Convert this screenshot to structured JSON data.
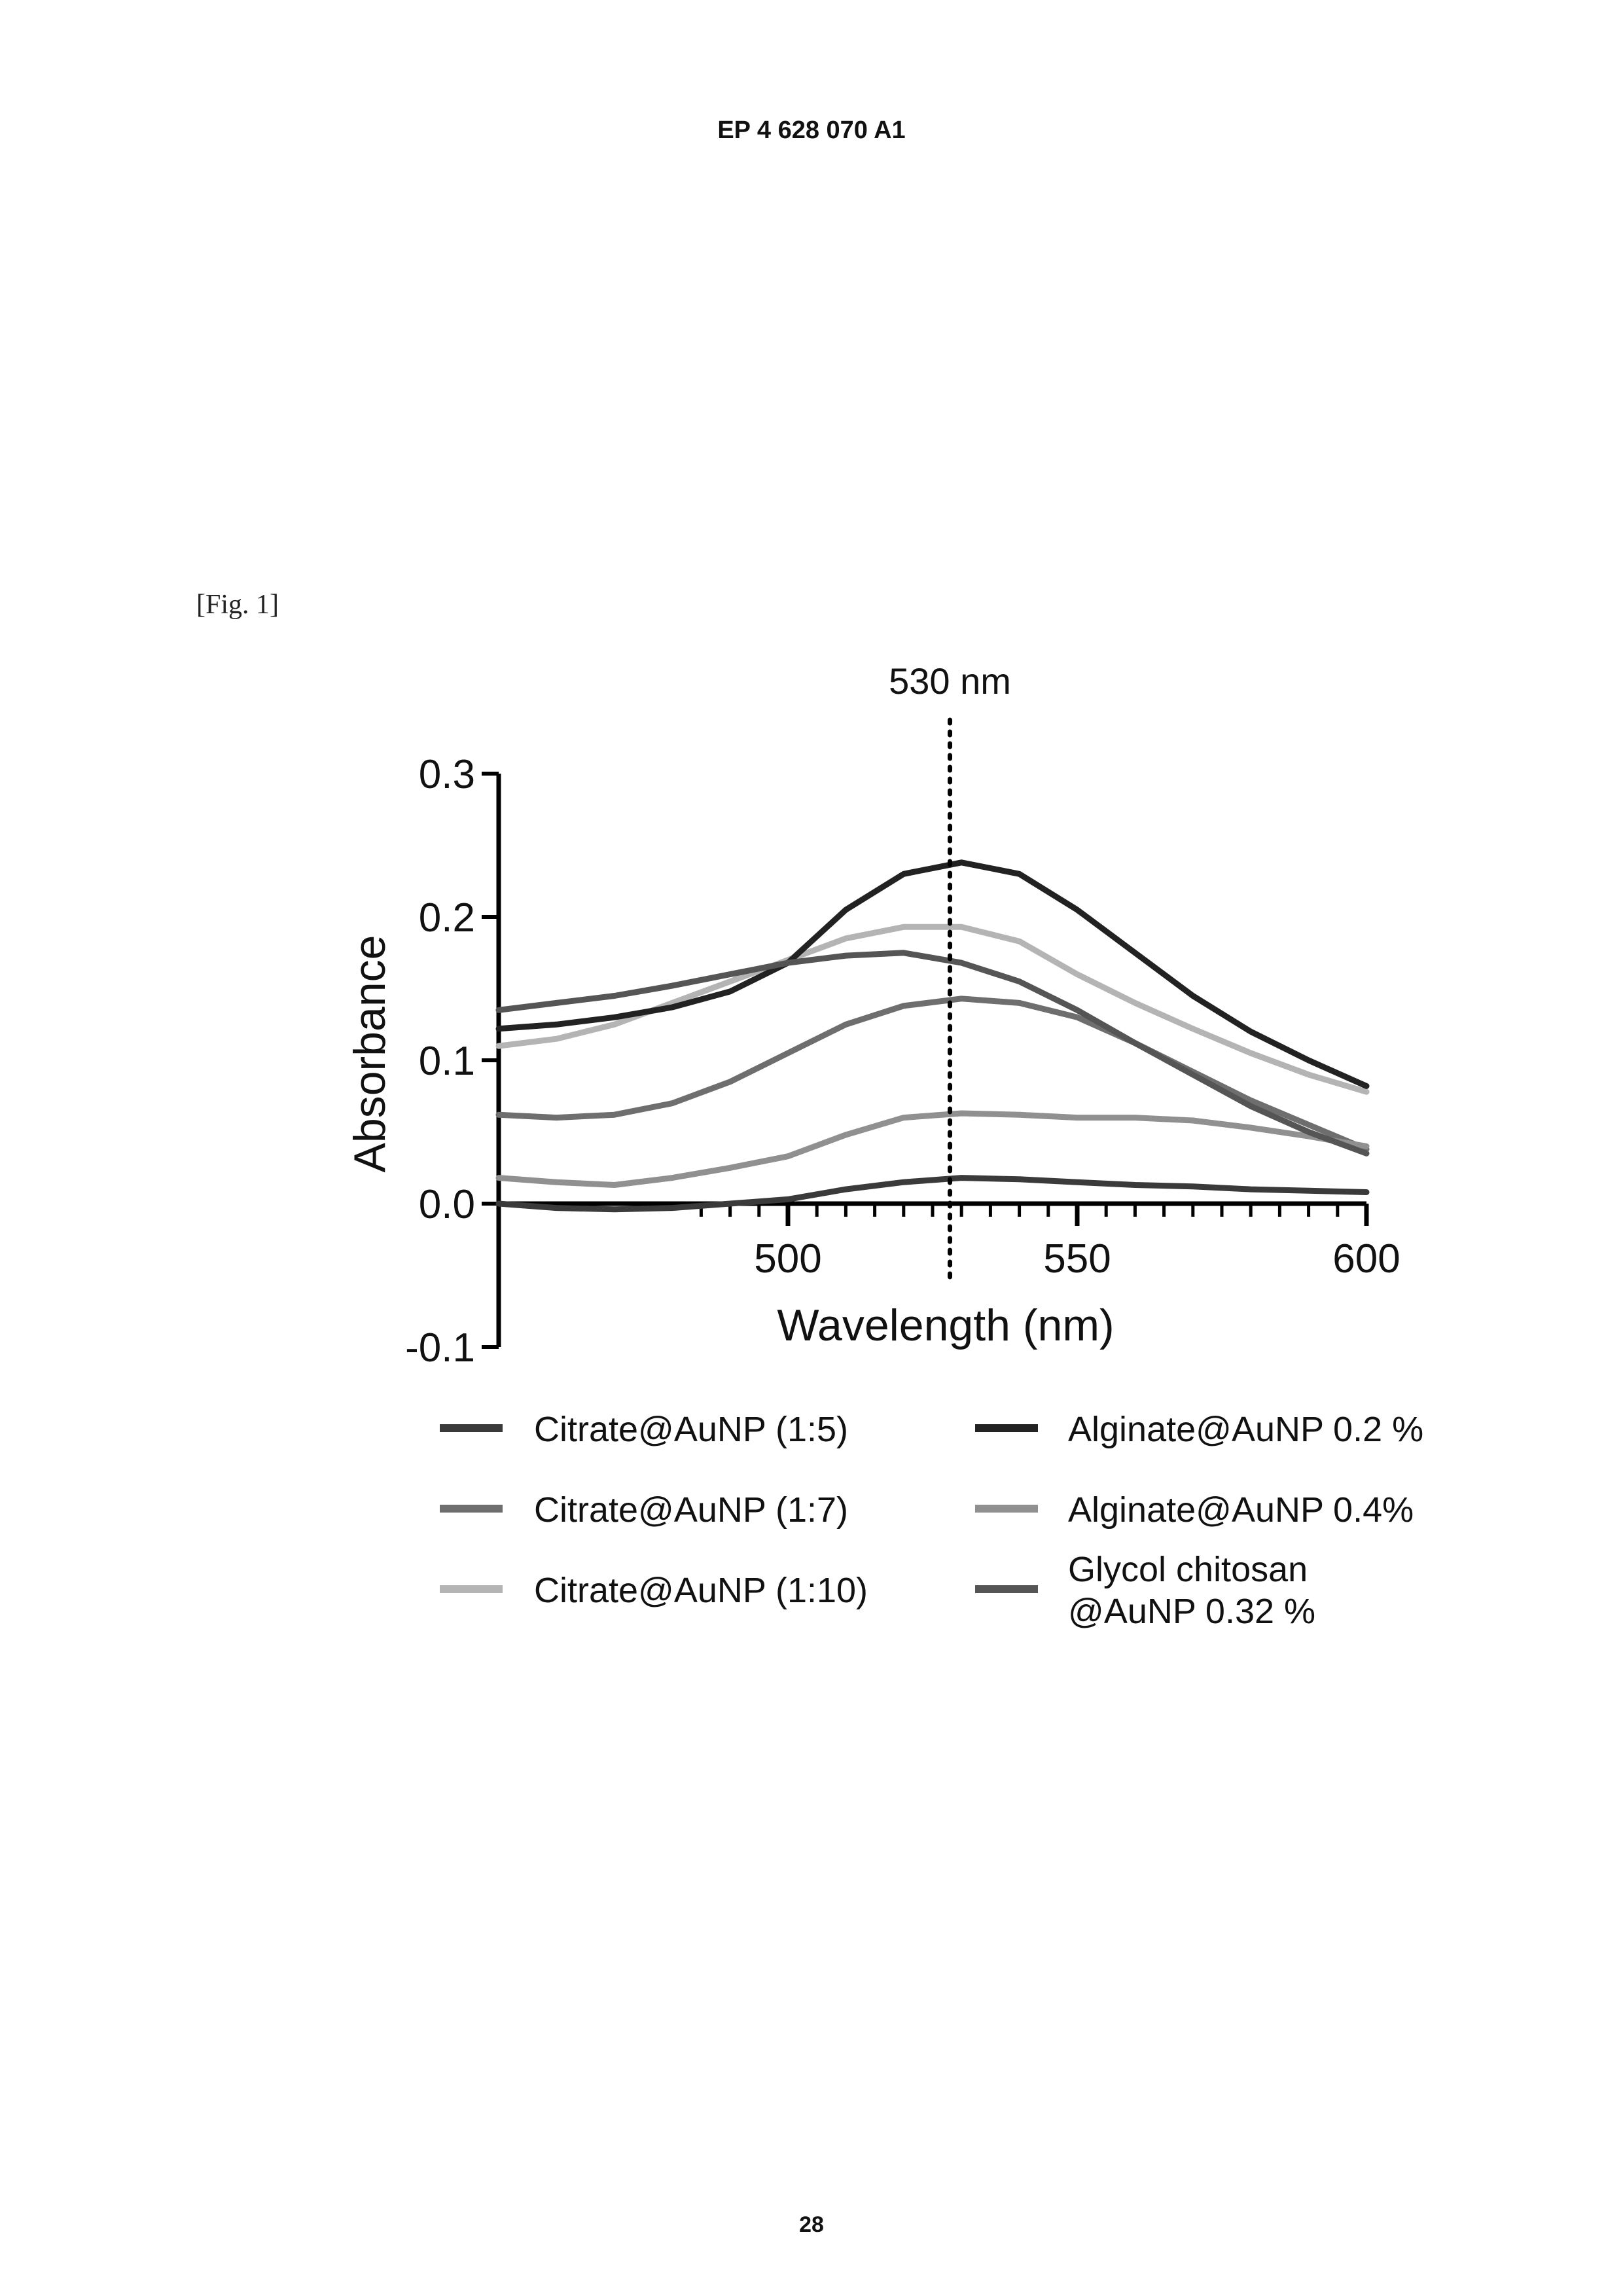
{
  "page": {
    "header": "EP 4 628 070 A1",
    "figure_label": "[Fig. 1]",
    "page_number": "28"
  },
  "chart_data": {
    "type": "line",
    "xlabel": "Wavelength (nm)",
    "ylabel": "Absorbance",
    "xlim": [
      450,
      600
    ],
    "ylim": [
      -0.1,
      0.3
    ],
    "x_ticks": [
      500,
      550,
      600
    ],
    "y_ticks": [
      0.3,
      0.2,
      0.1,
      0.0,
      -0.1
    ],
    "x_tick_labels": [
      "500",
      "550",
      "600"
    ],
    "y_tick_labels": [
      "0.3",
      "0.2",
      "0.1",
      "0.0",
      "-0.1"
    ],
    "annotation": {
      "label": "530 nm",
      "x": 528
    },
    "grid": false,
    "legend_position": "bottom",
    "x": [
      450,
      460,
      470,
      480,
      490,
      500,
      510,
      520,
      530,
      540,
      550,
      560,
      570,
      580,
      590,
      600
    ],
    "series": [
      {
        "name": "Citrate@AuNP (1:5)",
        "color": "#3a3a3a",
        "values": [
          0.0,
          -0.003,
          -0.004,
          -0.003,
          0.0,
          0.003,
          0.01,
          0.015,
          0.018,
          0.017,
          0.015,
          0.013,
          0.012,
          0.01,
          0.009,
          0.008
        ]
      },
      {
        "name": "Citrate@AuNP (1:7)",
        "color": "#6e6e6e",
        "values": [
          0.062,
          0.06,
          0.062,
          0.07,
          0.085,
          0.105,
          0.125,
          0.138,
          0.143,
          0.14,
          0.13,
          0.112,
          0.092,
          0.072,
          0.055,
          0.038
        ]
      },
      {
        "name": "Citrate@AuNP (1:10)",
        "color": "#b4b4b4",
        "values": [
          0.11,
          0.115,
          0.125,
          0.14,
          0.155,
          0.17,
          0.185,
          0.193,
          0.193,
          0.183,
          0.16,
          0.14,
          0.122,
          0.105,
          0.09,
          0.078
        ]
      },
      {
        "name": "Alginate@AuNP 0.2 %",
        "color": "#222222",
        "values": [
          0.122,
          0.125,
          0.13,
          0.137,
          0.148,
          0.168,
          0.205,
          0.23,
          0.238,
          0.23,
          0.205,
          0.175,
          0.145,
          0.12,
          0.1,
          0.082
        ]
      },
      {
        "name": "Alginate@AuNP 0.4%",
        "color": "#909090",
        "values": [
          0.018,
          0.015,
          0.013,
          0.018,
          0.025,
          0.033,
          0.048,
          0.06,
          0.063,
          0.062,
          0.06,
          0.06,
          0.058,
          0.053,
          0.047,
          0.04
        ]
      },
      {
        "name": "Glycol chitosan @AuNP 0.32 %",
        "color": "#555555",
        "values": [
          0.135,
          0.14,
          0.145,
          0.152,
          0.16,
          0.168,
          0.173,
          0.175,
          0.168,
          0.155,
          0.135,
          0.112,
          0.09,
          0.068,
          0.05,
          0.035
        ]
      }
    ]
  },
  "legend": {
    "items": [
      {
        "label_lines": [
          "Citrate@AuNP (1:5)"
        ],
        "color": "#3a3a3a"
      },
      {
        "label_lines": [
          "Citrate@AuNP (1:7)"
        ],
        "color": "#6e6e6e"
      },
      {
        "label_lines": [
          "Citrate@AuNP (1:10)"
        ],
        "color": "#b4b4b4"
      },
      {
        "label_lines": [
          "Alginate@AuNP 0.2 %"
        ],
        "color": "#222222"
      },
      {
        "label_lines": [
          "Alginate@AuNP 0.4%"
        ],
        "color": "#909090"
      },
      {
        "label_lines": [
          "Glycol chitosan",
          "@AuNP 0.32 %"
        ],
        "color": "#555555"
      }
    ]
  }
}
